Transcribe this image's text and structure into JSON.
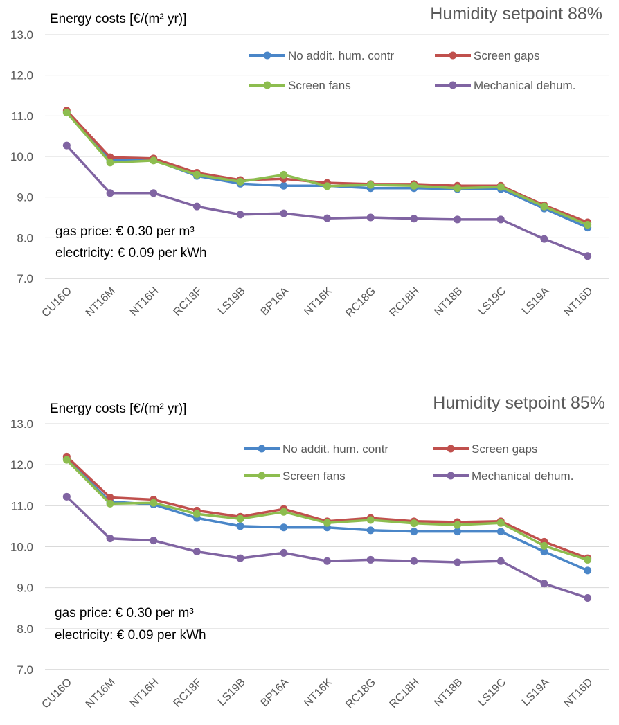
{
  "chart_data": [
    {
      "type": "line",
      "title": "Humidity setpoint 88%",
      "ylabel": "Energy costs [€/(m² yr)]",
      "xlabel": "",
      "ylim": [
        7.0,
        13.0
      ],
      "yticks": [
        "7.0",
        "8.0",
        "9.0",
        "10.0",
        "11.0",
        "12.0",
        "13.0"
      ],
      "grid": true,
      "legend": "top-right",
      "categories": [
        "CU16O",
        "NT16M",
        "NT16H",
        "RC18F",
        "LS19B",
        "BP16A",
        "NT16K",
        "RC18G",
        "RC18H",
        "NT18B",
        "LS19C",
        "LS19A",
        "NT16D"
      ],
      "annotations": [
        "gas price: € 0.30 per m³",
        "electricity: € 0.09 per kWh"
      ],
      "series": [
        {
          "name": "No addit. hum. contr",
          "color": "#4a86c8",
          "values": [
            11.1,
            9.9,
            9.92,
            9.52,
            9.33,
            9.28,
            9.28,
            9.22,
            9.22,
            9.2,
            9.2,
            8.72,
            8.25
          ]
        },
        {
          "name": "Screen gaps",
          "color": "#c0504d",
          "values": [
            11.13,
            9.98,
            9.95,
            9.6,
            9.42,
            9.45,
            9.35,
            9.32,
            9.32,
            9.28,
            9.28,
            8.8,
            8.38
          ]
        },
        {
          "name": "Screen fans",
          "color": "#8dbd4f",
          "values": [
            11.08,
            9.85,
            9.9,
            9.55,
            9.38,
            9.55,
            9.27,
            9.3,
            9.28,
            9.22,
            9.25,
            8.77,
            8.32
          ]
        },
        {
          "name": "Mechanical dehum.",
          "color": "#8064a2",
          "values": [
            10.27,
            9.1,
            9.1,
            8.77,
            8.57,
            8.6,
            8.48,
            8.5,
            8.47,
            8.45,
            8.45,
            7.97,
            7.55
          ]
        }
      ]
    },
    {
      "type": "line",
      "title": "Humidity setpoint 85%",
      "ylabel": "Energy costs [€/(m² yr)]",
      "xlabel": "",
      "ylim": [
        7.0,
        13.0
      ],
      "yticks": [
        "7.0",
        "8.0",
        "9.0",
        "10.0",
        "11.0",
        "12.0",
        "13.0"
      ],
      "grid": true,
      "legend": "top-right",
      "categories": [
        "CU16O",
        "NT16M",
        "NT16H",
        "RC18F",
        "LS19B",
        "BP16A",
        "NT16K",
        "RC18G",
        "RC18H",
        "NT18B",
        "LS19C",
        "LS19A",
        "NT16D"
      ],
      "annotations": [
        "gas price: € 0.30 per m³",
        "electricity: € 0.09 per kWh"
      ],
      "series": [
        {
          "name": "No addit. hum. contr",
          "color": "#4a86c8",
          "values": [
            12.15,
            11.1,
            11.03,
            10.7,
            10.5,
            10.47,
            10.47,
            10.4,
            10.37,
            10.37,
            10.37,
            9.88,
            9.42
          ]
        },
        {
          "name": "Screen gaps",
          "color": "#c0504d",
          "values": [
            12.2,
            11.2,
            11.15,
            10.88,
            10.73,
            10.92,
            10.62,
            10.7,
            10.62,
            10.6,
            10.62,
            10.12,
            9.72
          ]
        },
        {
          "name": "Screen fans",
          "color": "#8dbd4f",
          "values": [
            12.12,
            11.05,
            11.07,
            10.8,
            10.68,
            10.85,
            10.58,
            10.65,
            10.57,
            10.53,
            10.58,
            10.02,
            9.68
          ]
        },
        {
          "name": "Mechanical dehum.",
          "color": "#8064a2",
          "values": [
            11.22,
            10.2,
            10.15,
            9.88,
            9.72,
            9.85,
            9.65,
            9.68,
            9.65,
            9.62,
            9.65,
            9.1,
            8.75
          ]
        }
      ]
    }
  ]
}
